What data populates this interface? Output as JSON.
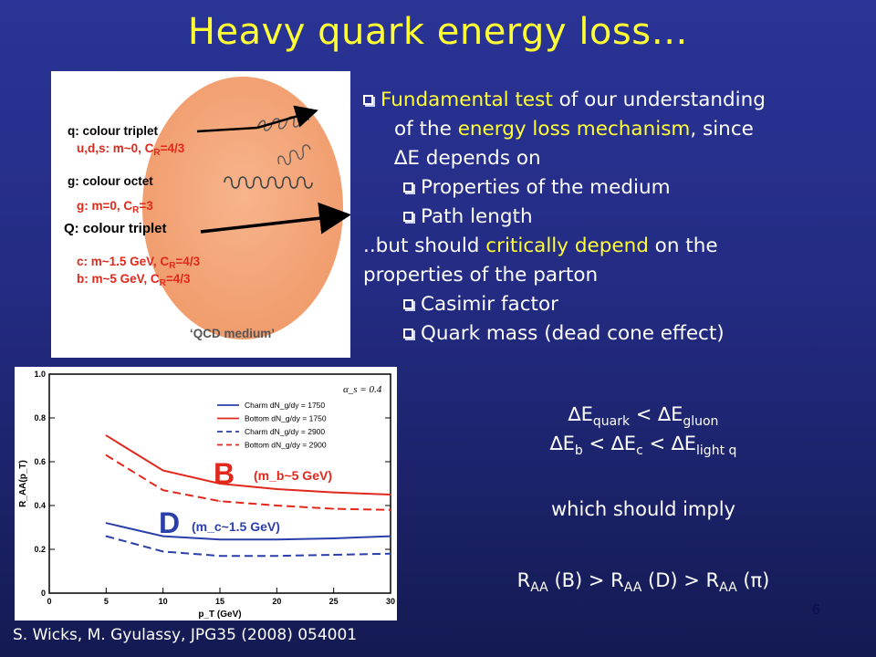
{
  "slide": {
    "title": "Heavy quark energy loss…",
    "page_number": "6",
    "citation": "S. Wicks, M. Gyulassy, JPG35 (2008) 054001"
  },
  "figure_top": {
    "q_label": "q: colour triplet",
    "uds_label": "u,d,s: m~0, C",
    "uds_sub": "R",
    "uds_tail": "=4/3",
    "gluon_label": "g: colour octet",
    "g_label": "g:       m=0, C",
    "g_sub": "R",
    "g_tail": "=3",
    "Q_label": "Q: colour triplet",
    "c_label": "c:  m~1.5 GeV, C",
    "c_sub": "R",
    "c_tail": "=4/3",
    "b_label": "b:  m~5 GeV,    C",
    "b_sub": "R",
    "b_tail": "=4/3",
    "medium_label": "‘QCD medium’",
    "medium_color": "#f5a77a"
  },
  "bullets": {
    "b1_hl1": "Fundamental test",
    "b1_t1": " of our understanding",
    "b1_t2a": "of the ",
    "b1_hl2": "energy loss mechanism",
    "b1_t2b": ", since",
    "b1_t3": "∆E depends on",
    "sub1": "Properties of the medium",
    "sub2": "Path length",
    "line4a": "..but should ",
    "line4hl": "critically depend",
    "line4b": " on the",
    "line5": "properties of the parton",
    "sub3": "Casimir factor",
    "sub4": "Quark mass (dead cone effect)"
  },
  "relations": {
    "eq1_a": "∆E",
    "eq1_a_sub": "quark",
    "eq1_mid": " < ∆E",
    "eq1_b_sub": "gluon",
    "eq2_a": "∆E",
    "eq2_a_sub": "b",
    "eq2_mid1": " < ∆E",
    "eq2_b_sub": "c",
    "eq2_mid2": " < ∆E",
    "eq2_c_sub": "light q",
    "imply": "which should imply",
    "raa_1": "R",
    "raa_1_sub": "AA",
    "raa_1_tail": " (B) > R",
    "raa_2_sub": "AA",
    "raa_2_tail": " (D) > R",
    "raa_3_sub": "AA",
    "raa_3_tail": "  (π)"
  },
  "chart_data": {
    "type": "line",
    "xlabel": "p_T (GeV)",
    "ylabel": "R_AA(p_T)",
    "xlim": [
      0,
      30
    ],
    "ylim": [
      0,
      1.0
    ],
    "xticks": [
      "0",
      "5",
      "10",
      "15",
      "20",
      "25",
      "30"
    ],
    "yticks": [
      "0",
      "0.2",
      "0.4",
      "0.6",
      "0.8",
      "1.0"
    ],
    "annotation_alpha": "α_s = 0.4",
    "big_label_B": "B",
    "big_label_B_detail": "(m_b~5 GeV)",
    "big_label_D": "D",
    "big_label_D_detail": "(m_c~1.5 GeV)",
    "x": [
      5,
      10,
      15,
      20,
      25,
      30
    ],
    "series": [
      {
        "name": "Charm dN_g/dy = 1750",
        "color": "#2b3fa8",
        "dash": false,
        "values": [
          0.32,
          0.26,
          0.245,
          0.245,
          0.25,
          0.26
        ]
      },
      {
        "name": "Bottom dN_g/dy = 1750",
        "color": "#e0281c",
        "dash": false,
        "values": [
          0.72,
          0.56,
          0.5,
          0.475,
          0.46,
          0.45
        ]
      },
      {
        "name": "Charm dN_g/dy = 2900",
        "color": "#2b3fa8",
        "dash": true,
        "values": [
          0.26,
          0.19,
          0.17,
          0.17,
          0.175,
          0.18
        ]
      },
      {
        "name": "Bottom dN_g/dy = 2900",
        "color": "#e0281c",
        "dash": true,
        "values": [
          0.63,
          0.47,
          0.42,
          0.4,
          0.385,
          0.38
        ]
      }
    ]
  }
}
